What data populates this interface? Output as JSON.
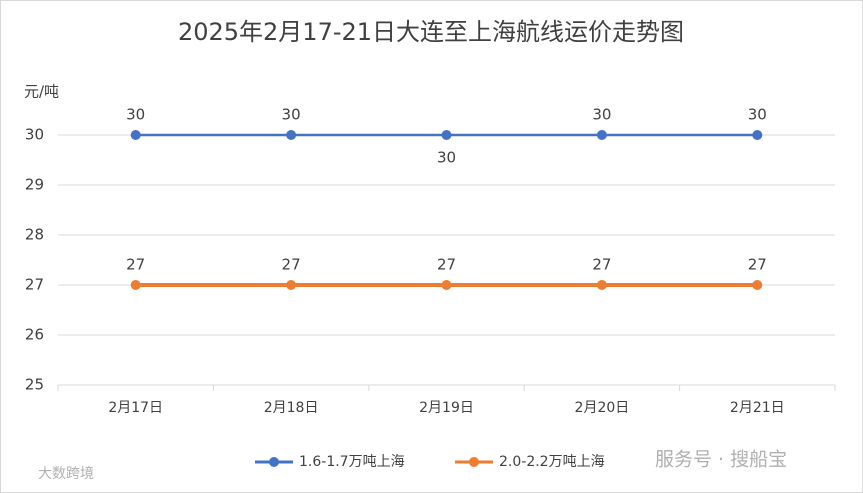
{
  "chart_data": {
    "type": "line",
    "title": "2025年2月17-21日大连至上海航线运价走势图",
    "y_label": "元/吨",
    "categories": [
      "2月17日",
      "2月18日",
      "2月19日",
      "2月20日",
      "2月21日"
    ],
    "series": [
      {
        "name": "1.6-1.7万吨上海",
        "color": "#4472c4",
        "values": [
          30,
          30,
          30,
          30,
          30
        ]
      },
      {
        "name": "2.0-2.2万吨上海",
        "color": "#ed7d31",
        "values": [
          27,
          27,
          27,
          27,
          27
        ]
      }
    ],
    "ylim": [
      25,
      30
    ],
    "yticks": [
      25,
      26,
      27,
      28,
      29,
      30
    ],
    "grid": true,
    "legend": "bottom"
  },
  "watermarks": [
    "服务号 · 搜船宝",
    "大数跨境"
  ]
}
